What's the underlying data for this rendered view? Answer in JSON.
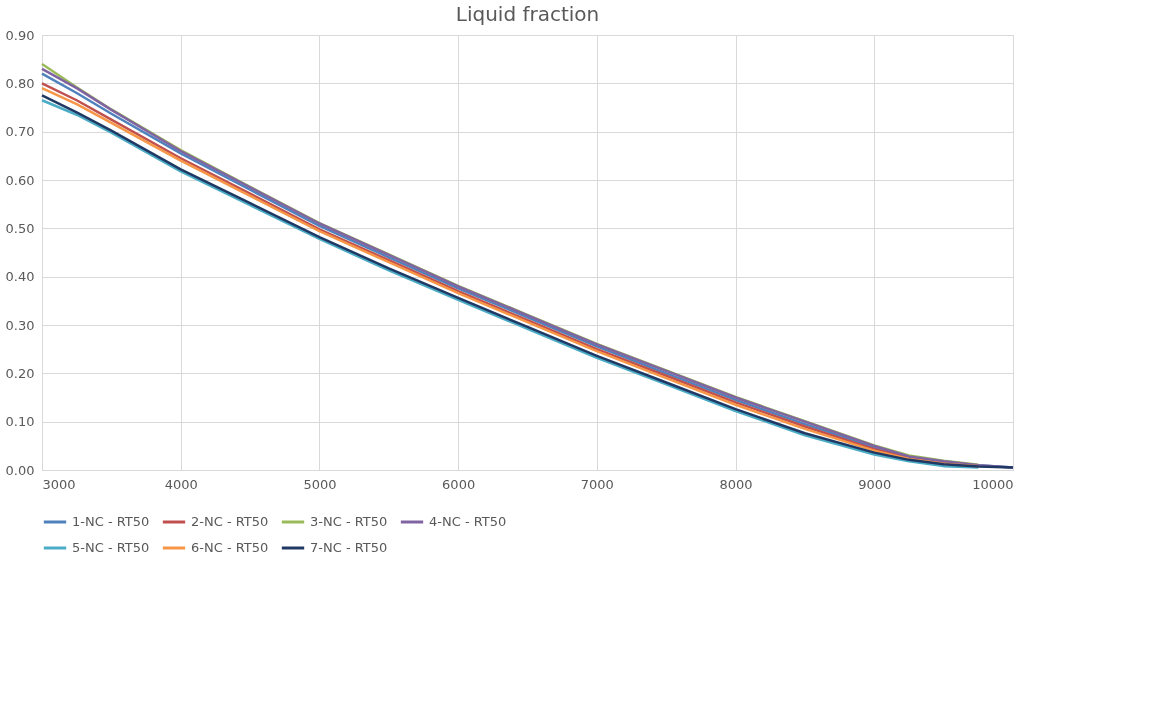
{
  "chart_data": {
    "type": "line",
    "title": "Liquid fraction",
    "x": [
      3000,
      3250,
      3500,
      4000,
      4500,
      5000,
      5500,
      6000,
      6500,
      7000,
      7500,
      8000,
      8500,
      9000,
      9250,
      9500,
      9750,
      10000
    ],
    "series": [
      {
        "name": "1-NC - RT50",
        "color": "#4f81bd",
        "values": [
          0.82,
          0.78,
          0.737,
          0.655,
          0.58,
          0.505,
          0.44,
          0.376,
          0.316,
          0.256,
          0.2,
          0.145,
          0.095,
          0.047,
          0.027,
          0.017,
          0.01,
          0.005
        ]
      },
      {
        "name": "2-NC - RT50",
        "color": "#c0504d",
        "values": [
          0.8,
          0.765,
          0.725,
          0.645,
          0.572,
          0.498,
          0.434,
          0.37,
          0.31,
          0.25,
          0.195,
          0.14,
          0.09,
          0.043,
          0.025,
          0.015,
          0.009,
          null
        ]
      },
      {
        "name": "3-NC - RT50",
        "color": "#9bbb59",
        "values": [
          0.84,
          0.792,
          0.746,
          0.662,
          0.586,
          0.511,
          0.446,
          0.381,
          0.321,
          0.261,
          0.206,
          0.151,
          0.101,
          0.051,
          0.03,
          0.019,
          0.011,
          null
        ]
      },
      {
        "name": "4-NC - RT50",
        "color": "#8064a2",
        "values": [
          0.83,
          0.79,
          0.745,
          0.66,
          0.585,
          0.51,
          0.445,
          0.38,
          0.32,
          0.26,
          0.205,
          0.15,
          0.1,
          0.05,
          0.028,
          0.018,
          0.01,
          0.005
        ]
      },
      {
        "name": "5-NC - RT50",
        "color": "#4bacc6",
        "values": [
          0.765,
          0.735,
          0.698,
          0.618,
          0.548,
          0.478,
          0.413,
          0.352,
          0.292,
          0.232,
          0.177,
          0.122,
          0.072,
          0.032,
          0.018,
          0.008,
          0.005,
          null
        ]
      },
      {
        "name": "6-NC - RT50",
        "color": "#f79646",
        "values": [
          0.79,
          0.757,
          0.718,
          0.64,
          0.567,
          0.494,
          0.43,
          0.366,
          0.306,
          0.246,
          0.19,
          0.135,
          0.085,
          0.04,
          0.023,
          0.013,
          0.008,
          null
        ]
      },
      {
        "name": "7-NC - RT50",
        "color": "#1f3864",
        "values": [
          0.775,
          0.74,
          0.702,
          0.622,
          0.552,
          0.482,
          0.417,
          0.356,
          0.296,
          0.236,
          0.181,
          0.126,
          0.076,
          0.036,
          0.021,
          0.012,
          0.007,
          0.005
        ]
      }
    ],
    "xlim": [
      3000,
      10000
    ],
    "xticks": [
      3000,
      4000,
      5000,
      6000,
      7000,
      8000,
      9000,
      10000
    ],
    "ylim": [
      0,
      0.9
    ],
    "yticks": [
      {
        "value": 0,
        "label": "0.00"
      },
      {
        "value": 0.1,
        "label": "0.10"
      },
      {
        "value": 0.2,
        "label": "0.20"
      },
      {
        "value": 0.3,
        "label": "0.30"
      },
      {
        "value": 0.4,
        "label": "0.40"
      },
      {
        "value": 0.5,
        "label": "0.50"
      },
      {
        "value": 0.6,
        "label": "0.60"
      },
      {
        "value": 0.7,
        "label": "0.70"
      },
      {
        "value": 0.8,
        "label": "0.80"
      },
      {
        "value": 0.9,
        "label": "0.90"
      }
    ],
    "grid": true,
    "legend": "bottom",
    "marker": "none",
    "line_style": "solid"
  }
}
